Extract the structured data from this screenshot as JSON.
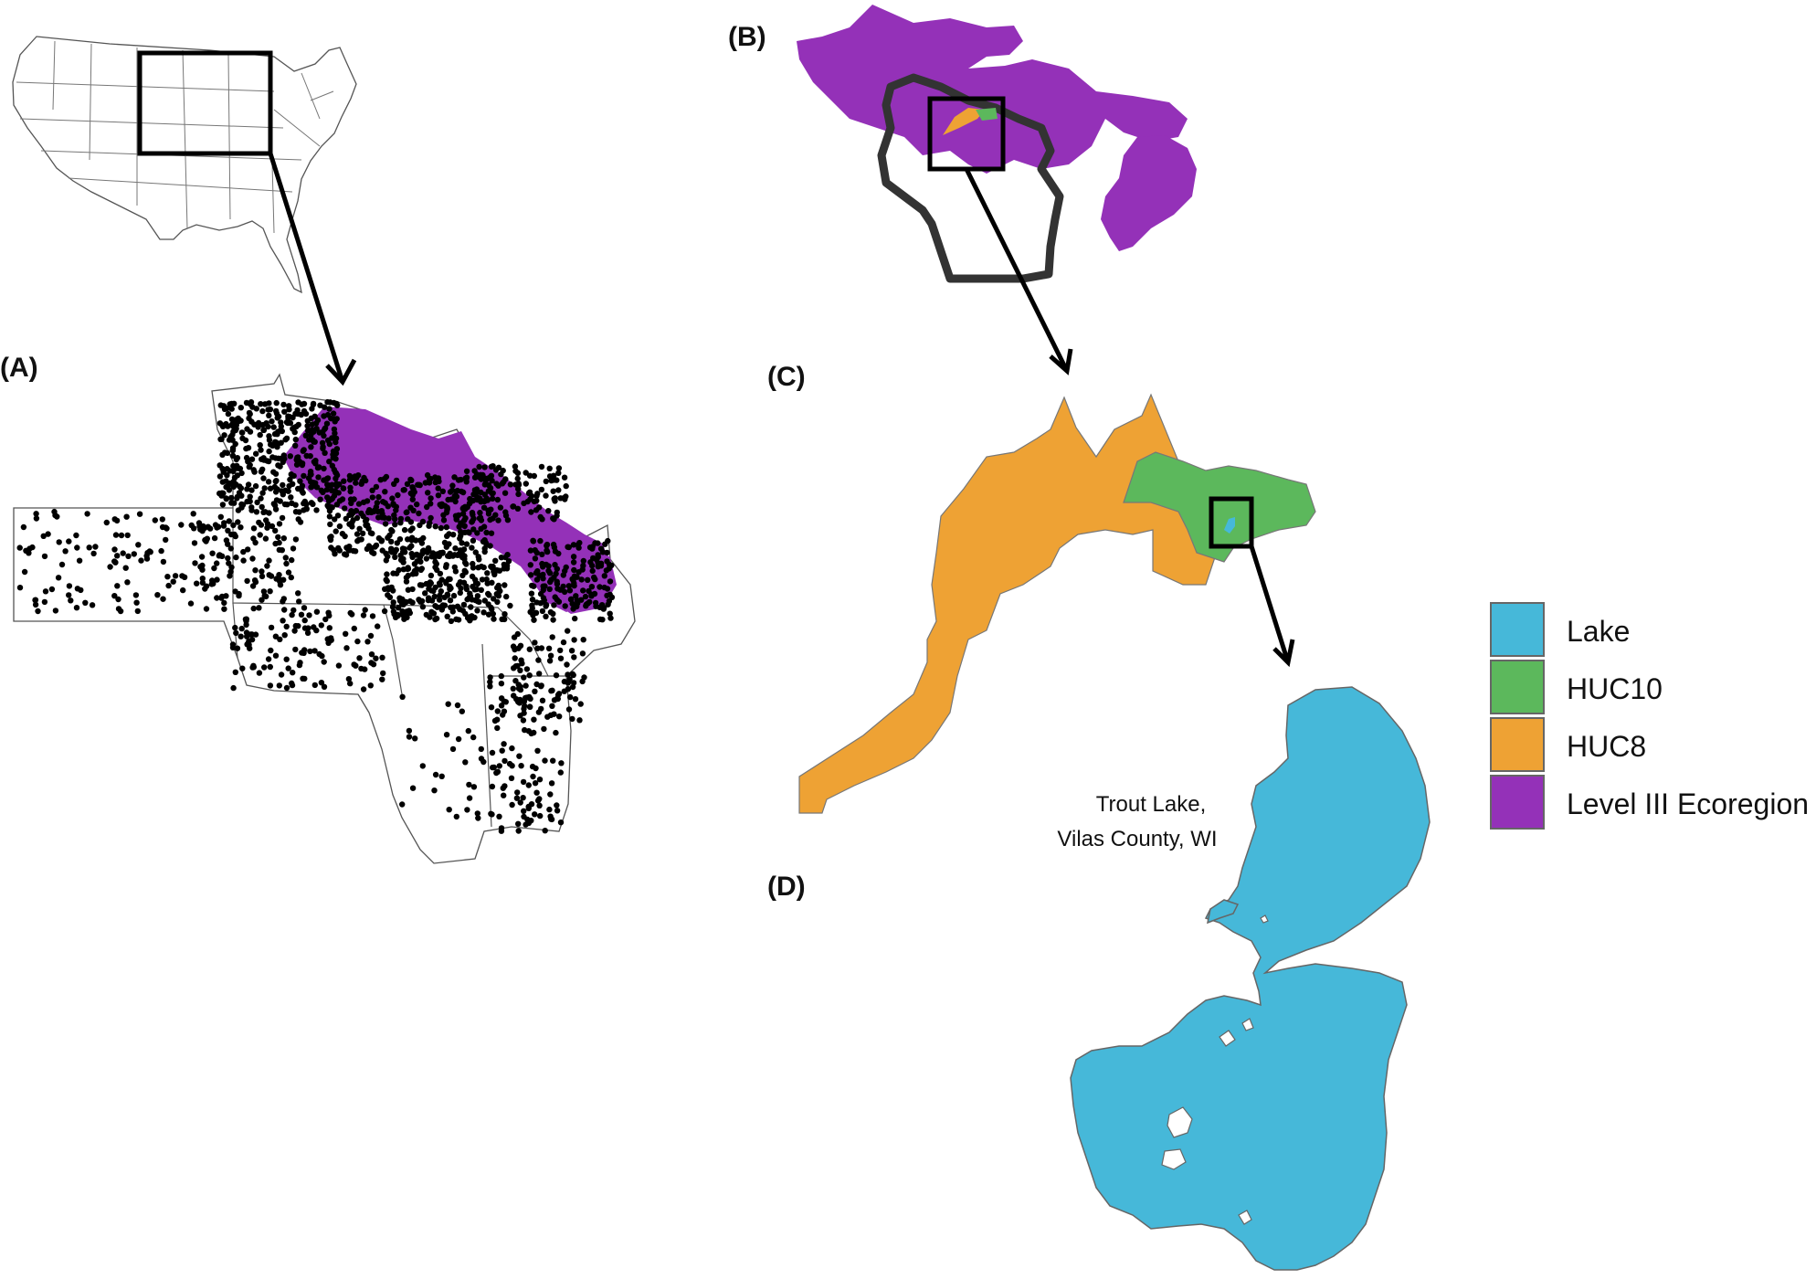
{
  "colors": {
    "lake": "#46b8d9",
    "huc10": "#5cb85c",
    "huc8": "#eea234",
    "ecoregion": "#9431b8",
    "sites": "#000000"
  },
  "panels": {
    "a": "(A)",
    "b": "(B)",
    "c": "(C)",
    "d": "(D)"
  },
  "annotation": {
    "line1": "Trout Lake,",
    "line2": "Vilas County, WI"
  },
  "legend": {
    "items": [
      {
        "label": "Lake",
        "color": "#46b8d9"
      },
      {
        "label": "HUC10",
        "color": "#5cb85c"
      },
      {
        "label": "HUC8",
        "color": "#eea234"
      },
      {
        "label": "Level III Ecoregion",
        "color": "#9431b8"
      }
    ]
  }
}
